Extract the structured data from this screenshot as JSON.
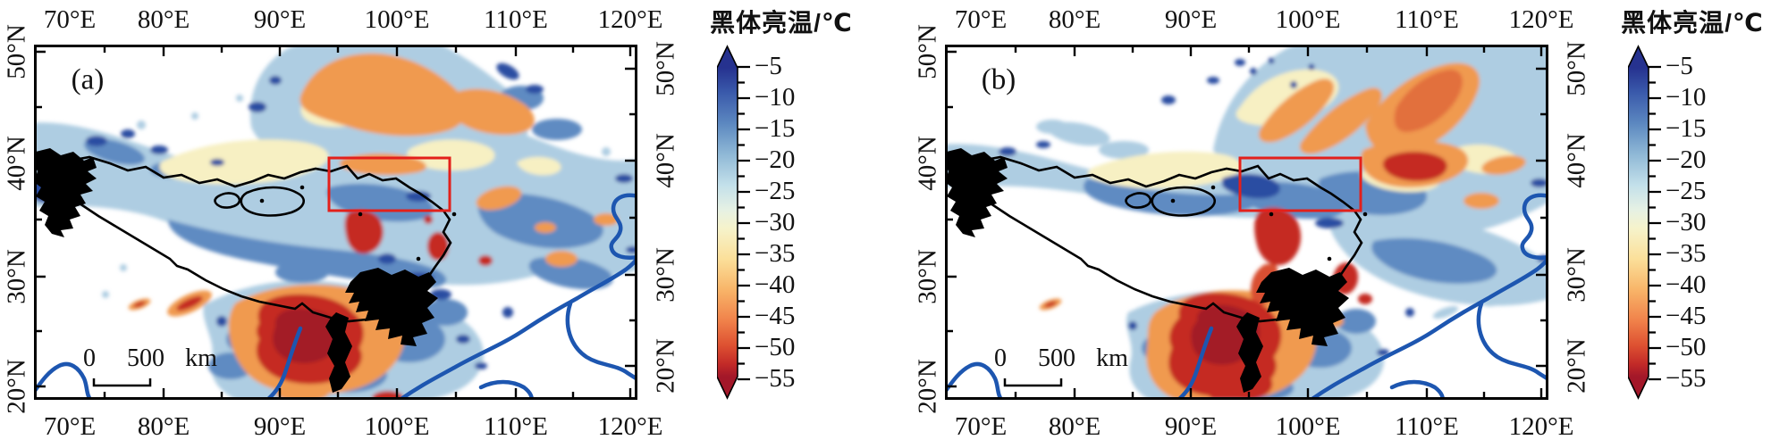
{
  "panels": [
    {
      "label": "(a)"
    },
    {
      "label": "(b)"
    }
  ],
  "axes": {
    "lon_labels": [
      "70°E",
      "80°E",
      "90°E",
      "100°E",
      "110°E",
      "120°E"
    ],
    "lat_labels": [
      "50°N",
      "40°N",
      "30°N",
      "20°N"
    ]
  },
  "colorbar": {
    "title": "黑体亮温/℃",
    "tick_labels": [
      "−5",
      "−10",
      "−15",
      "−20",
      "−25",
      "−30",
      "−35",
      "−40",
      "−45",
      "−50",
      "−55"
    ],
    "values": [
      -5,
      -10,
      -15,
      -20,
      -25,
      -30,
      -35,
      -40,
      -45,
      -50,
      -55
    ],
    "gradient_colors": [
      "#26328f",
      "#3a5aab",
      "#5c88c0",
      "#8fb8d6",
      "#c3e0ea",
      "#f6f3cb",
      "#fbdf99",
      "#f8b468",
      "#f0814a",
      "#dd5031",
      "#a31729"
    ]
  },
  "scalebar": {
    "zero": "0",
    "value": "500",
    "unit": "km"
  },
  "overlays": {
    "study_area_box_color": "#e3201b",
    "plateau_outline_color": "#000000",
    "river_color": "#1d56b0"
  }
}
